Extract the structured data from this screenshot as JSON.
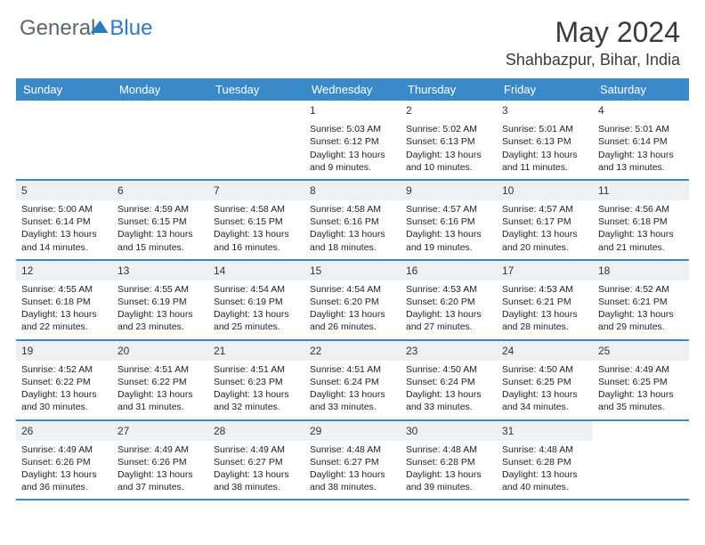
{
  "brand": {
    "part1": "General",
    "part2": "Blue"
  },
  "title": "May 2024",
  "location": "Shahbazpur, Bihar, India",
  "colors": {
    "header_bg": "#3a89c9",
    "header_text": "#ffffff",
    "daynum_bg": "#eef1f3",
    "border": "#3a89c9",
    "text": "#222222",
    "brand_gray": "#5a6670",
    "brand_blue": "#2b7bbf"
  },
  "day_names": [
    "Sunday",
    "Monday",
    "Tuesday",
    "Wednesday",
    "Thursday",
    "Friday",
    "Saturday"
  ],
  "weeks": [
    [
      null,
      null,
      null,
      {
        "n": "1",
        "sr": "5:03 AM",
        "ss": "6:12 PM",
        "dl": "13 hours and 9 minutes."
      },
      {
        "n": "2",
        "sr": "5:02 AM",
        "ss": "6:13 PM",
        "dl": "13 hours and 10 minutes."
      },
      {
        "n": "3",
        "sr": "5:01 AM",
        "ss": "6:13 PM",
        "dl": "13 hours and 11 minutes."
      },
      {
        "n": "4",
        "sr": "5:01 AM",
        "ss": "6:14 PM",
        "dl": "13 hours and 13 minutes."
      }
    ],
    [
      {
        "n": "5",
        "sr": "5:00 AM",
        "ss": "6:14 PM",
        "dl": "13 hours and 14 minutes."
      },
      {
        "n": "6",
        "sr": "4:59 AM",
        "ss": "6:15 PM",
        "dl": "13 hours and 15 minutes."
      },
      {
        "n": "7",
        "sr": "4:58 AM",
        "ss": "6:15 PM",
        "dl": "13 hours and 16 minutes."
      },
      {
        "n": "8",
        "sr": "4:58 AM",
        "ss": "6:16 PM",
        "dl": "13 hours and 18 minutes."
      },
      {
        "n": "9",
        "sr": "4:57 AM",
        "ss": "6:16 PM",
        "dl": "13 hours and 19 minutes."
      },
      {
        "n": "10",
        "sr": "4:57 AM",
        "ss": "6:17 PM",
        "dl": "13 hours and 20 minutes."
      },
      {
        "n": "11",
        "sr": "4:56 AM",
        "ss": "6:18 PM",
        "dl": "13 hours and 21 minutes."
      }
    ],
    [
      {
        "n": "12",
        "sr": "4:55 AM",
        "ss": "6:18 PM",
        "dl": "13 hours and 22 minutes."
      },
      {
        "n": "13",
        "sr": "4:55 AM",
        "ss": "6:19 PM",
        "dl": "13 hours and 23 minutes."
      },
      {
        "n": "14",
        "sr": "4:54 AM",
        "ss": "6:19 PM",
        "dl": "13 hours and 25 minutes."
      },
      {
        "n": "15",
        "sr": "4:54 AM",
        "ss": "6:20 PM",
        "dl": "13 hours and 26 minutes."
      },
      {
        "n": "16",
        "sr": "4:53 AM",
        "ss": "6:20 PM",
        "dl": "13 hours and 27 minutes."
      },
      {
        "n": "17",
        "sr": "4:53 AM",
        "ss": "6:21 PM",
        "dl": "13 hours and 28 minutes."
      },
      {
        "n": "18",
        "sr": "4:52 AM",
        "ss": "6:21 PM",
        "dl": "13 hours and 29 minutes."
      }
    ],
    [
      {
        "n": "19",
        "sr": "4:52 AM",
        "ss": "6:22 PM",
        "dl": "13 hours and 30 minutes."
      },
      {
        "n": "20",
        "sr": "4:51 AM",
        "ss": "6:22 PM",
        "dl": "13 hours and 31 minutes."
      },
      {
        "n": "21",
        "sr": "4:51 AM",
        "ss": "6:23 PM",
        "dl": "13 hours and 32 minutes."
      },
      {
        "n": "22",
        "sr": "4:51 AM",
        "ss": "6:24 PM",
        "dl": "13 hours and 33 minutes."
      },
      {
        "n": "23",
        "sr": "4:50 AM",
        "ss": "6:24 PM",
        "dl": "13 hours and 33 minutes."
      },
      {
        "n": "24",
        "sr": "4:50 AM",
        "ss": "6:25 PM",
        "dl": "13 hours and 34 minutes."
      },
      {
        "n": "25",
        "sr": "4:49 AM",
        "ss": "6:25 PM",
        "dl": "13 hours and 35 minutes."
      }
    ],
    [
      {
        "n": "26",
        "sr": "4:49 AM",
        "ss": "6:26 PM",
        "dl": "13 hours and 36 minutes."
      },
      {
        "n": "27",
        "sr": "4:49 AM",
        "ss": "6:26 PM",
        "dl": "13 hours and 37 minutes."
      },
      {
        "n": "28",
        "sr": "4:49 AM",
        "ss": "6:27 PM",
        "dl": "13 hours and 38 minutes."
      },
      {
        "n": "29",
        "sr": "4:48 AM",
        "ss": "6:27 PM",
        "dl": "13 hours and 38 minutes."
      },
      {
        "n": "30",
        "sr": "4:48 AM",
        "ss": "6:28 PM",
        "dl": "13 hours and 39 minutes."
      },
      {
        "n": "31",
        "sr": "4:48 AM",
        "ss": "6:28 PM",
        "dl": "13 hours and 40 minutes."
      },
      null
    ]
  ],
  "labels": {
    "sunrise": "Sunrise:",
    "sunset": "Sunset:",
    "daylight": "Daylight:"
  }
}
